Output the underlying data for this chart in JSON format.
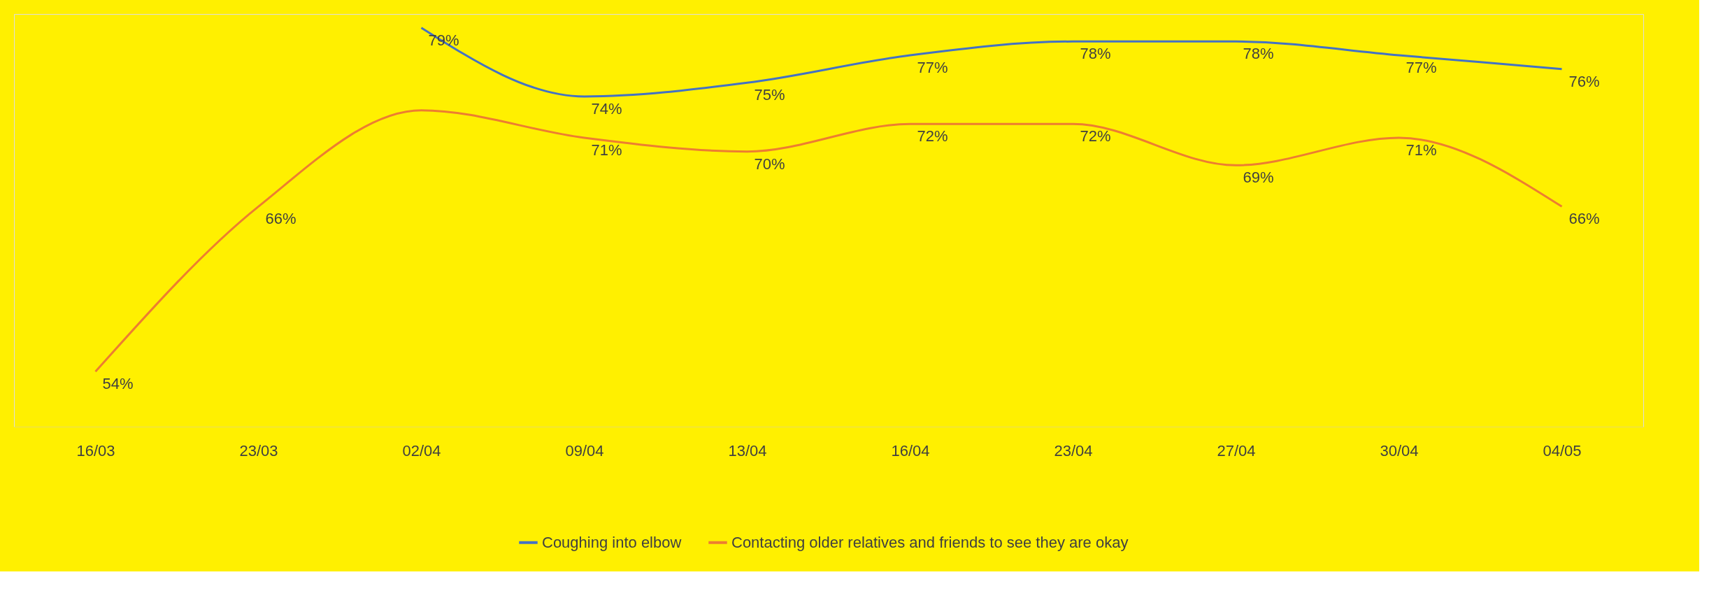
{
  "chart_data": {
    "type": "line",
    "categories": [
      "16/03",
      "23/03",
      "02/04",
      "09/04",
      "13/04",
      "16/04",
      "23/04",
      "27/04",
      "30/04",
      "04/05"
    ],
    "series": [
      {
        "name": "Coughing into elbow",
        "color": "#4472c4",
        "values": [
          null,
          null,
          79,
          74,
          75,
          77,
          78,
          78,
          77,
          76
        ],
        "value_labels": [
          null,
          null,
          "79%",
          "74%",
          "75%",
          "77%",
          "78%",
          "78%",
          "77%",
          "76%"
        ]
      },
      {
        "name": "Contacting older relatives and friends to see they are okay",
        "color": "#ed7d31",
        "values": [
          54,
          66,
          73,
          71,
          70,
          72,
          72,
          69,
          71,
          66
        ],
        "value_labels": [
          "54%",
          "66%",
          null,
          "71%",
          "70%",
          "72%",
          "72%",
          "69%",
          "71%",
          "66%"
        ]
      }
    ],
    "ylim": [
      50,
      80
    ],
    "tick_labels": "x",
    "grid": false,
    "legend": "bottom",
    "marker": "none",
    "line_style": "solid"
  }
}
